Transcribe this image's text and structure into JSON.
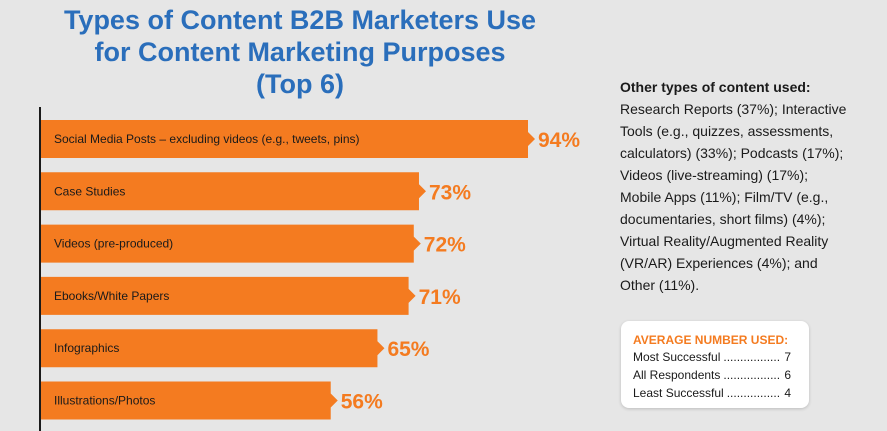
{
  "title_lines": [
    "Types of Content B2B Marketers Use",
    "for Content Marketing Purposes",
    "(Top 6)"
  ],
  "colors": {
    "bar": "#f47b20",
    "title": "#2a6ebb",
    "axis": "#1a1a1a",
    "background": "#e6e6e6"
  },
  "chart_data": {
    "type": "bar",
    "orientation": "horizontal",
    "categories": [
      "Social Media Posts – excluding videos (e.g., tweets, pins)",
      "Case Studies",
      "Videos (pre-produced)",
      "Ebooks/White Papers",
      "Infographics",
      "Illustrations/Photos"
    ],
    "values": [
      94,
      73,
      72,
      71,
      65,
      56
    ],
    "value_labels": [
      "94%",
      "73%",
      "72%",
      "71%",
      "65%",
      "56%"
    ],
    "title": "Types of Content B2B Marketers Use for Content Marketing Purposes (Top 6)",
    "xlabel": "",
    "ylabel": "",
    "xlim": [
      0,
      100
    ],
    "grid": false,
    "legend": "none"
  },
  "other_types": {
    "heading": "Other types of content used:",
    "lines": [
      "Research Reports (37%); Interactive",
      "Tools (e.g., quizzes, assessments,",
      "calculators) (33%); Podcasts (17%);",
      "Videos (live-streaming) (17%);",
      "Mobile Apps (11%); Film/TV (e.g.,",
      "documentaries, short films) (4%);",
      "Virtual Reality/Augmented Reality",
      "(VR/AR) Experiences (4%); and",
      "Other (11%)."
    ]
  },
  "average_box": {
    "title": "AVERAGE NUMBER USED:",
    "rows": [
      {
        "label": "Most Successful",
        "value": "7"
      },
      {
        "label": "All Respondents",
        "value": "6"
      },
      {
        "label": "Least Successful",
        "value": "4"
      }
    ]
  }
}
